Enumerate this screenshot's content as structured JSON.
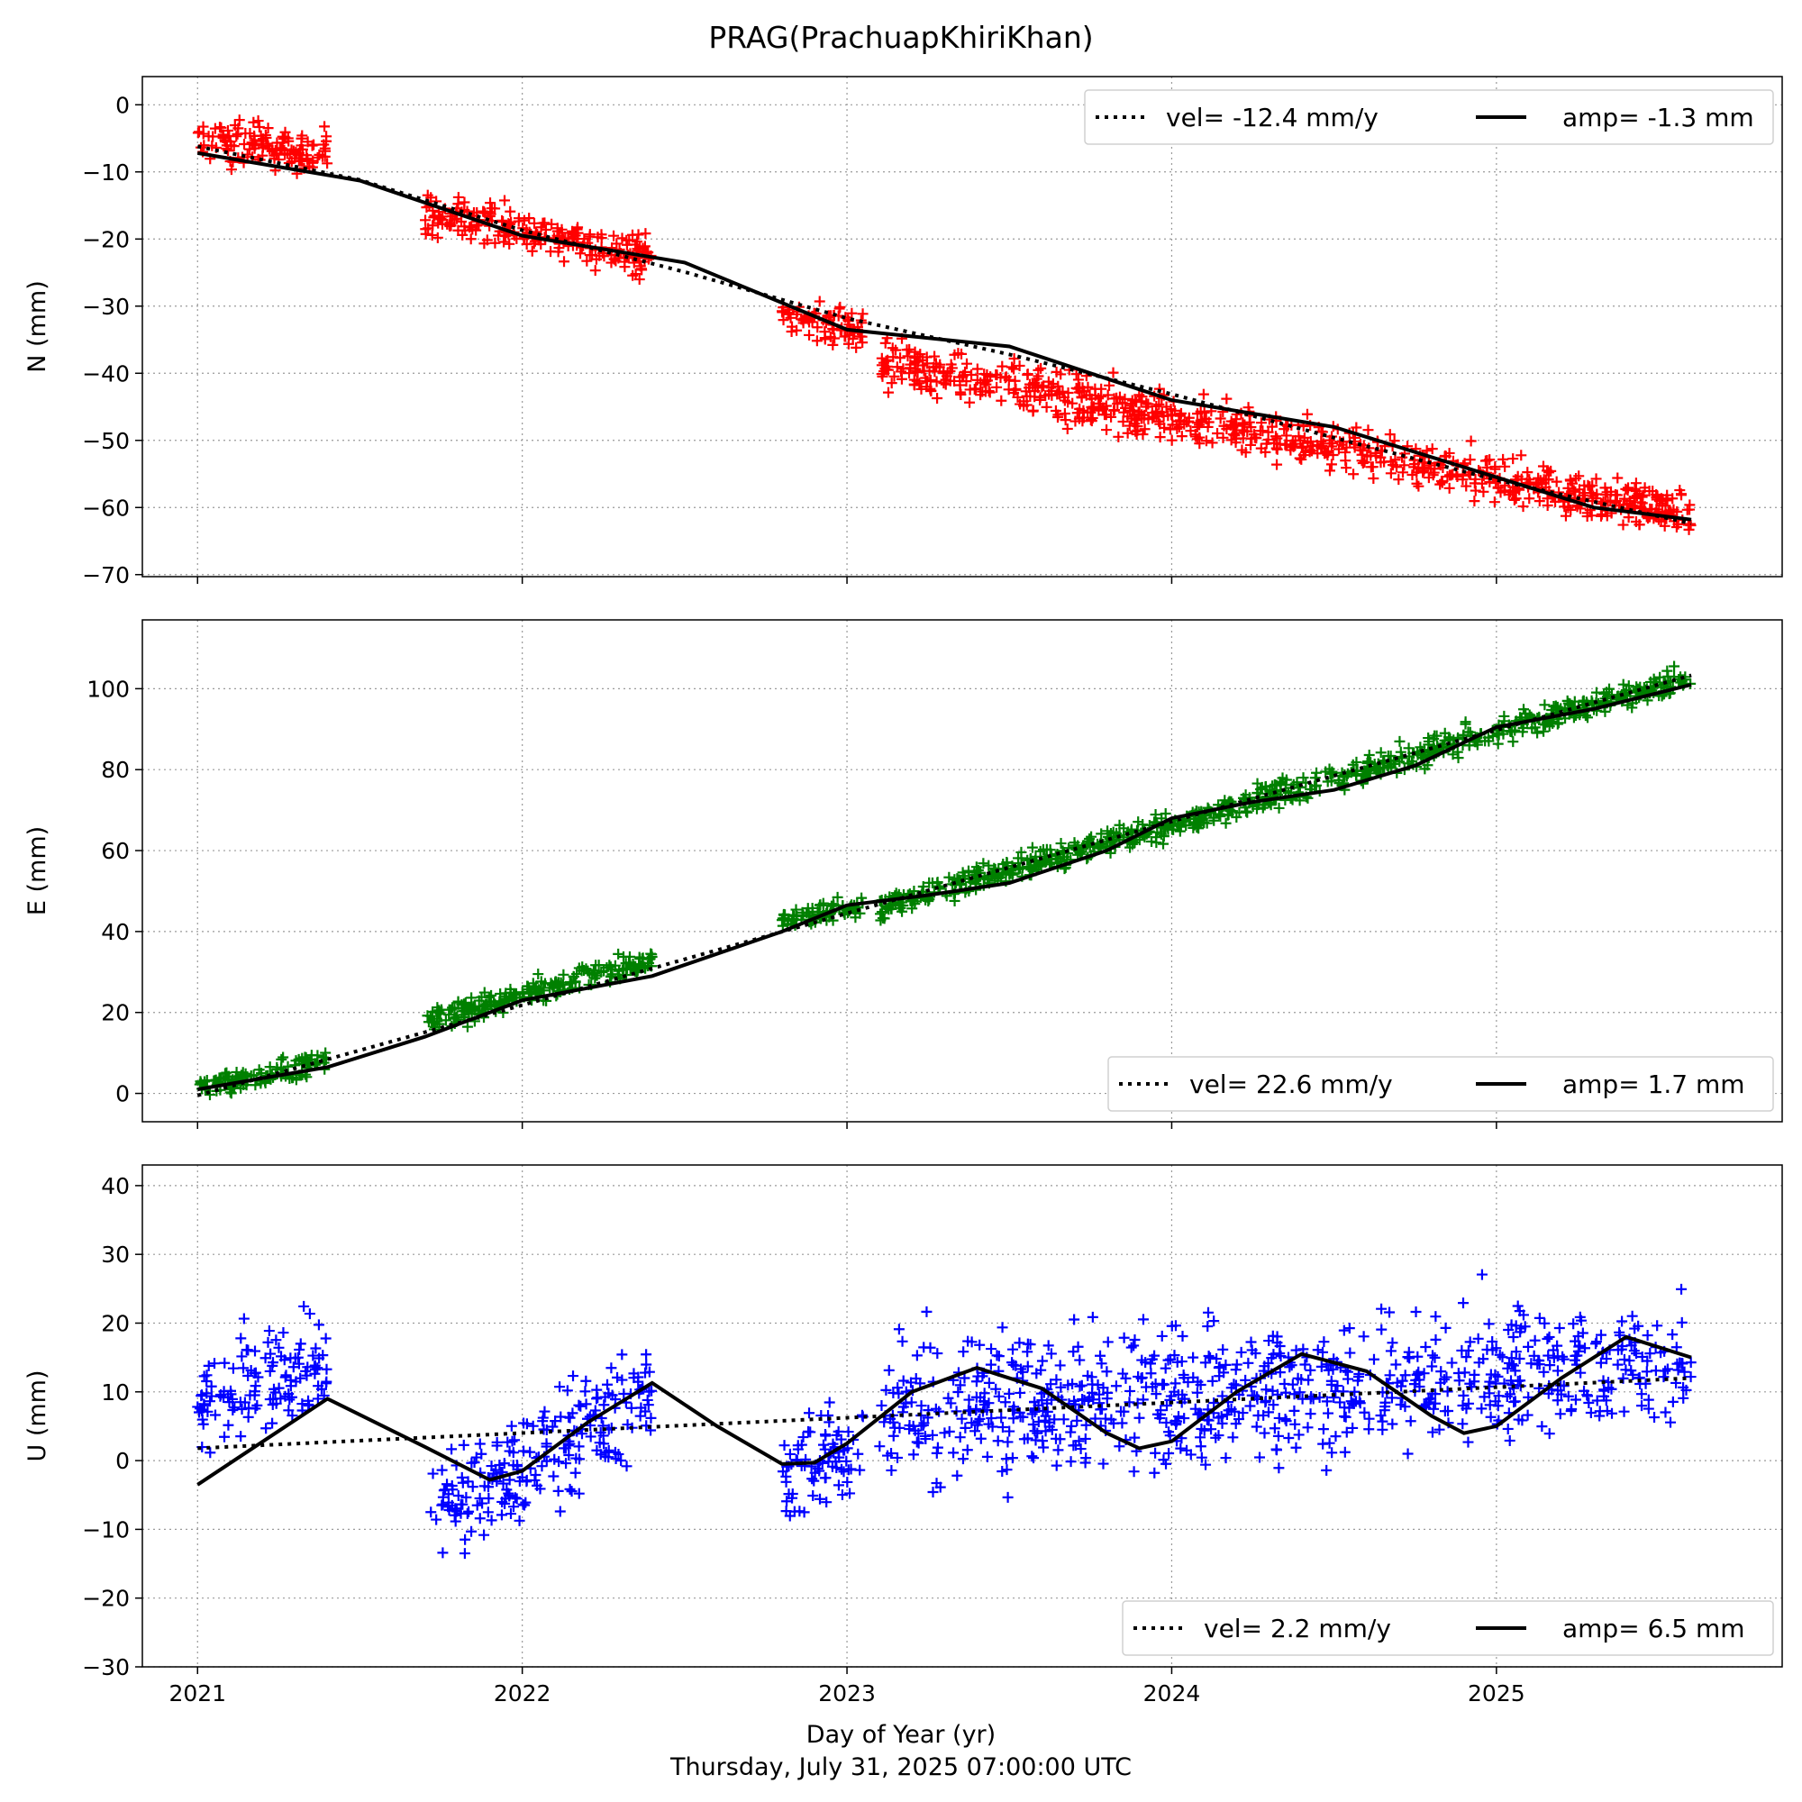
{
  "figure": {
    "title": "PRAG(PrachuapKhiriKhan)",
    "xlabel": "Day of Year (yr)",
    "footer": "Thursday, July 31, 2025 07:00:00 UTC"
  },
  "chart_data": [
    {
      "type": "scatter",
      "name": "N",
      "ylabel": "N (mm)",
      "color": "#ff0000",
      "marker": "+",
      "xlim": [
        2020.83,
        2025.88
      ],
      "ylim": [
        -70.3,
        4.2
      ],
      "yticks": [
        0,
        -10,
        -20,
        -30,
        -40,
        -50,
        -60,
        -70
      ],
      "ytick_labels": [
        "0",
        "−10",
        "−20",
        "−30",
        "−40",
        "−50",
        "−60",
        "−70"
      ],
      "xticks": [
        2021,
        2022,
        2023,
        2024,
        2025
      ],
      "grid": true,
      "legend_position": "upper right",
      "legend": {
        "vel_label": "vel= -12.4 mm/y",
        "amp_label": "amp= -1.3 mm"
      },
      "velocity_mm_per_yr": -12.4,
      "amplitude_mm": -1.3,
      "data_segments": [
        {
          "x": [
            2021.0,
            2021.4
          ],
          "y": [
            -5.5,
            -7.0
          ],
          "spread": 3.0
        },
        {
          "x": [
            2021.7,
            2022.4
          ],
          "y": [
            -16.0,
            -22.5
          ],
          "spread": 2.8
        },
        {
          "x": [
            2022.8,
            2023.05
          ],
          "y": [
            -31.5,
            -33.5
          ],
          "spread": 2.6
        },
        {
          "x": [
            2023.1,
            2025.6
          ],
          "y": [
            -38.5,
            -61.0
          ],
          "spread": 3.2
        }
      ],
      "fit_dotted": {
        "x": [
          2021.0,
          2021.5,
          2022.0,
          2022.5,
          2023.0,
          2023.5,
          2024.0,
          2024.5,
          2025.0,
          2025.6
        ],
        "y": [
          -6.2,
          -11.2,
          -18.7,
          -24.9,
          -31.8,
          -37.2,
          -43.1,
          -49.6,
          -55.9,
          -62.4
        ]
      },
      "fit_solid": {
        "x": [
          2021.0,
          2021.5,
          2022.0,
          2022.5,
          2023.0,
          2023.5,
          2024.0,
          2024.5,
          2025.0,
          2025.3,
          2025.6
        ],
        "y": [
          -7.2,
          -11.3,
          -19.5,
          -23.5,
          -33.5,
          -36.0,
          -44.0,
          -48.0,
          -55.5,
          -60.0,
          -61.8
        ]
      }
    },
    {
      "type": "scatter",
      "name": "E",
      "ylabel": "E (mm)",
      "color": "#008000",
      "marker": "+",
      "xlim": [
        2020.83,
        2025.88
      ],
      "ylim": [
        -7.0,
        117.0
      ],
      "yticks": [
        0,
        20,
        40,
        60,
        80,
        100
      ],
      "ytick_labels": [
        "0",
        "20",
        "40",
        "60",
        "80",
        "100"
      ],
      "xticks": [
        2021,
        2022,
        2023,
        2024,
        2025
      ],
      "grid": true,
      "legend_position": "lower right",
      "legend": {
        "vel_label": "vel= 22.6 mm/y",
        "amp_label": "amp= 1.7 mm"
      },
      "velocity_mm_per_yr": 22.6,
      "amplitude_mm": 1.7,
      "data_segments": [
        {
          "x": [
            2021.0,
            2021.4
          ],
          "y": [
            1.5,
            8.0
          ],
          "spread": 2.4
        },
        {
          "x": [
            2021.7,
            2022.4
          ],
          "y": [
            17.5,
            33.0
          ],
          "spread": 2.8
        },
        {
          "x": [
            2022.8,
            2023.05
          ],
          "y": [
            43.0,
            46.5
          ],
          "spread": 2.0
        },
        {
          "x": [
            2023.1,
            2025.6
          ],
          "y": [
            46.0,
            103.0
          ],
          "spread": 3.0
        }
      ],
      "fit_dotted": {
        "x": [
          2021.0,
          2022.0,
          2023.0,
          2024.0,
          2025.0,
          2025.6
        ],
        "y": [
          -0.5,
          21.8,
          44.5,
          67.2,
          89.8,
          103.3
        ]
      },
      "fit_solid": {
        "x": [
          2021.0,
          2021.4,
          2021.7,
          2022.0,
          2022.4,
          2022.8,
          2023.0,
          2023.25,
          2023.5,
          2023.8,
          2024.0,
          2024.25,
          2024.5,
          2024.75,
          2025.0,
          2025.3,
          2025.6
        ],
        "y": [
          1.0,
          6.5,
          14.0,
          23.0,
          29.0,
          40.0,
          46.5,
          49.0,
          52.0,
          60.0,
          68.0,
          72.0,
          75.0,
          81.0,
          90.5,
          95.0,
          101.0
        ]
      }
    },
    {
      "type": "scatter",
      "name": "U",
      "ylabel": "U (mm)",
      "color": "#0000ff",
      "marker": "+",
      "xlim": [
        2020.83,
        2025.88
      ],
      "ylim": [
        -30.0,
        43.0
      ],
      "yticks": [
        40,
        30,
        20,
        10,
        0,
        -10,
        -20,
        -30
      ],
      "ytick_labels": [
        "40",
        "30",
        "20",
        "10",
        "0",
        "−10",
        "−20",
        "−30"
      ],
      "xticks": [
        2021,
        2022,
        2023,
        2024,
        2025
      ],
      "xtick_labels": [
        "2021",
        "2022",
        "2023",
        "2024",
        "2025"
      ],
      "grid": true,
      "legend_position": "lower right",
      "legend": {
        "vel_label": "vel= 2.2 mm/y",
        "amp_label": "amp= 6.5 mm"
      },
      "velocity_mm_per_yr": 2.2,
      "amplitude_mm": 6.5,
      "data_segments": [
        {
          "x": [
            2021.0,
            2021.4
          ],
          "y": [
            8.0,
            14.0
          ],
          "spread": 6.5
        },
        {
          "x": [
            2021.7,
            2022.4
          ],
          "y": [
            -8.0,
            10.0
          ],
          "spread": 7.0
        },
        {
          "x": [
            2022.8,
            2023.05
          ],
          "y": [
            -2.0,
            2.0
          ],
          "spread": 7.0
        },
        {
          "x": [
            2023.1,
            2025.6
          ],
          "y": [
            7.0,
            14.0
          ],
          "spread": 9.0
        }
      ],
      "fit_dotted": {
        "x": [
          2021.0,
          2025.6
        ],
        "y": [
          1.8,
          12.0
        ]
      },
      "fit_solid": {
        "x": [
          2021.0,
          2021.4,
          2021.7,
          2021.9,
          2022.0,
          2022.2,
          2022.4,
          2022.6,
          2022.8,
          2022.9,
          2023.0,
          2023.2,
          2023.4,
          2023.6,
          2023.8,
          2023.9,
          2024.0,
          2024.2,
          2024.4,
          2024.6,
          2024.8,
          2024.9,
          2025.0,
          2025.2,
          2025.4,
          2025.6
        ],
        "y": [
          -3.5,
          9.0,
          2.0,
          -2.8,
          -1.5,
          5.5,
          11.3,
          5.0,
          -0.5,
          -0.3,
          2.5,
          10.0,
          13.5,
          10.5,
          4.0,
          1.8,
          2.8,
          10.0,
          15.5,
          13.0,
          6.5,
          4.0,
          5.0,
          12.0,
          18.0,
          15.0
        ]
      }
    }
  ]
}
